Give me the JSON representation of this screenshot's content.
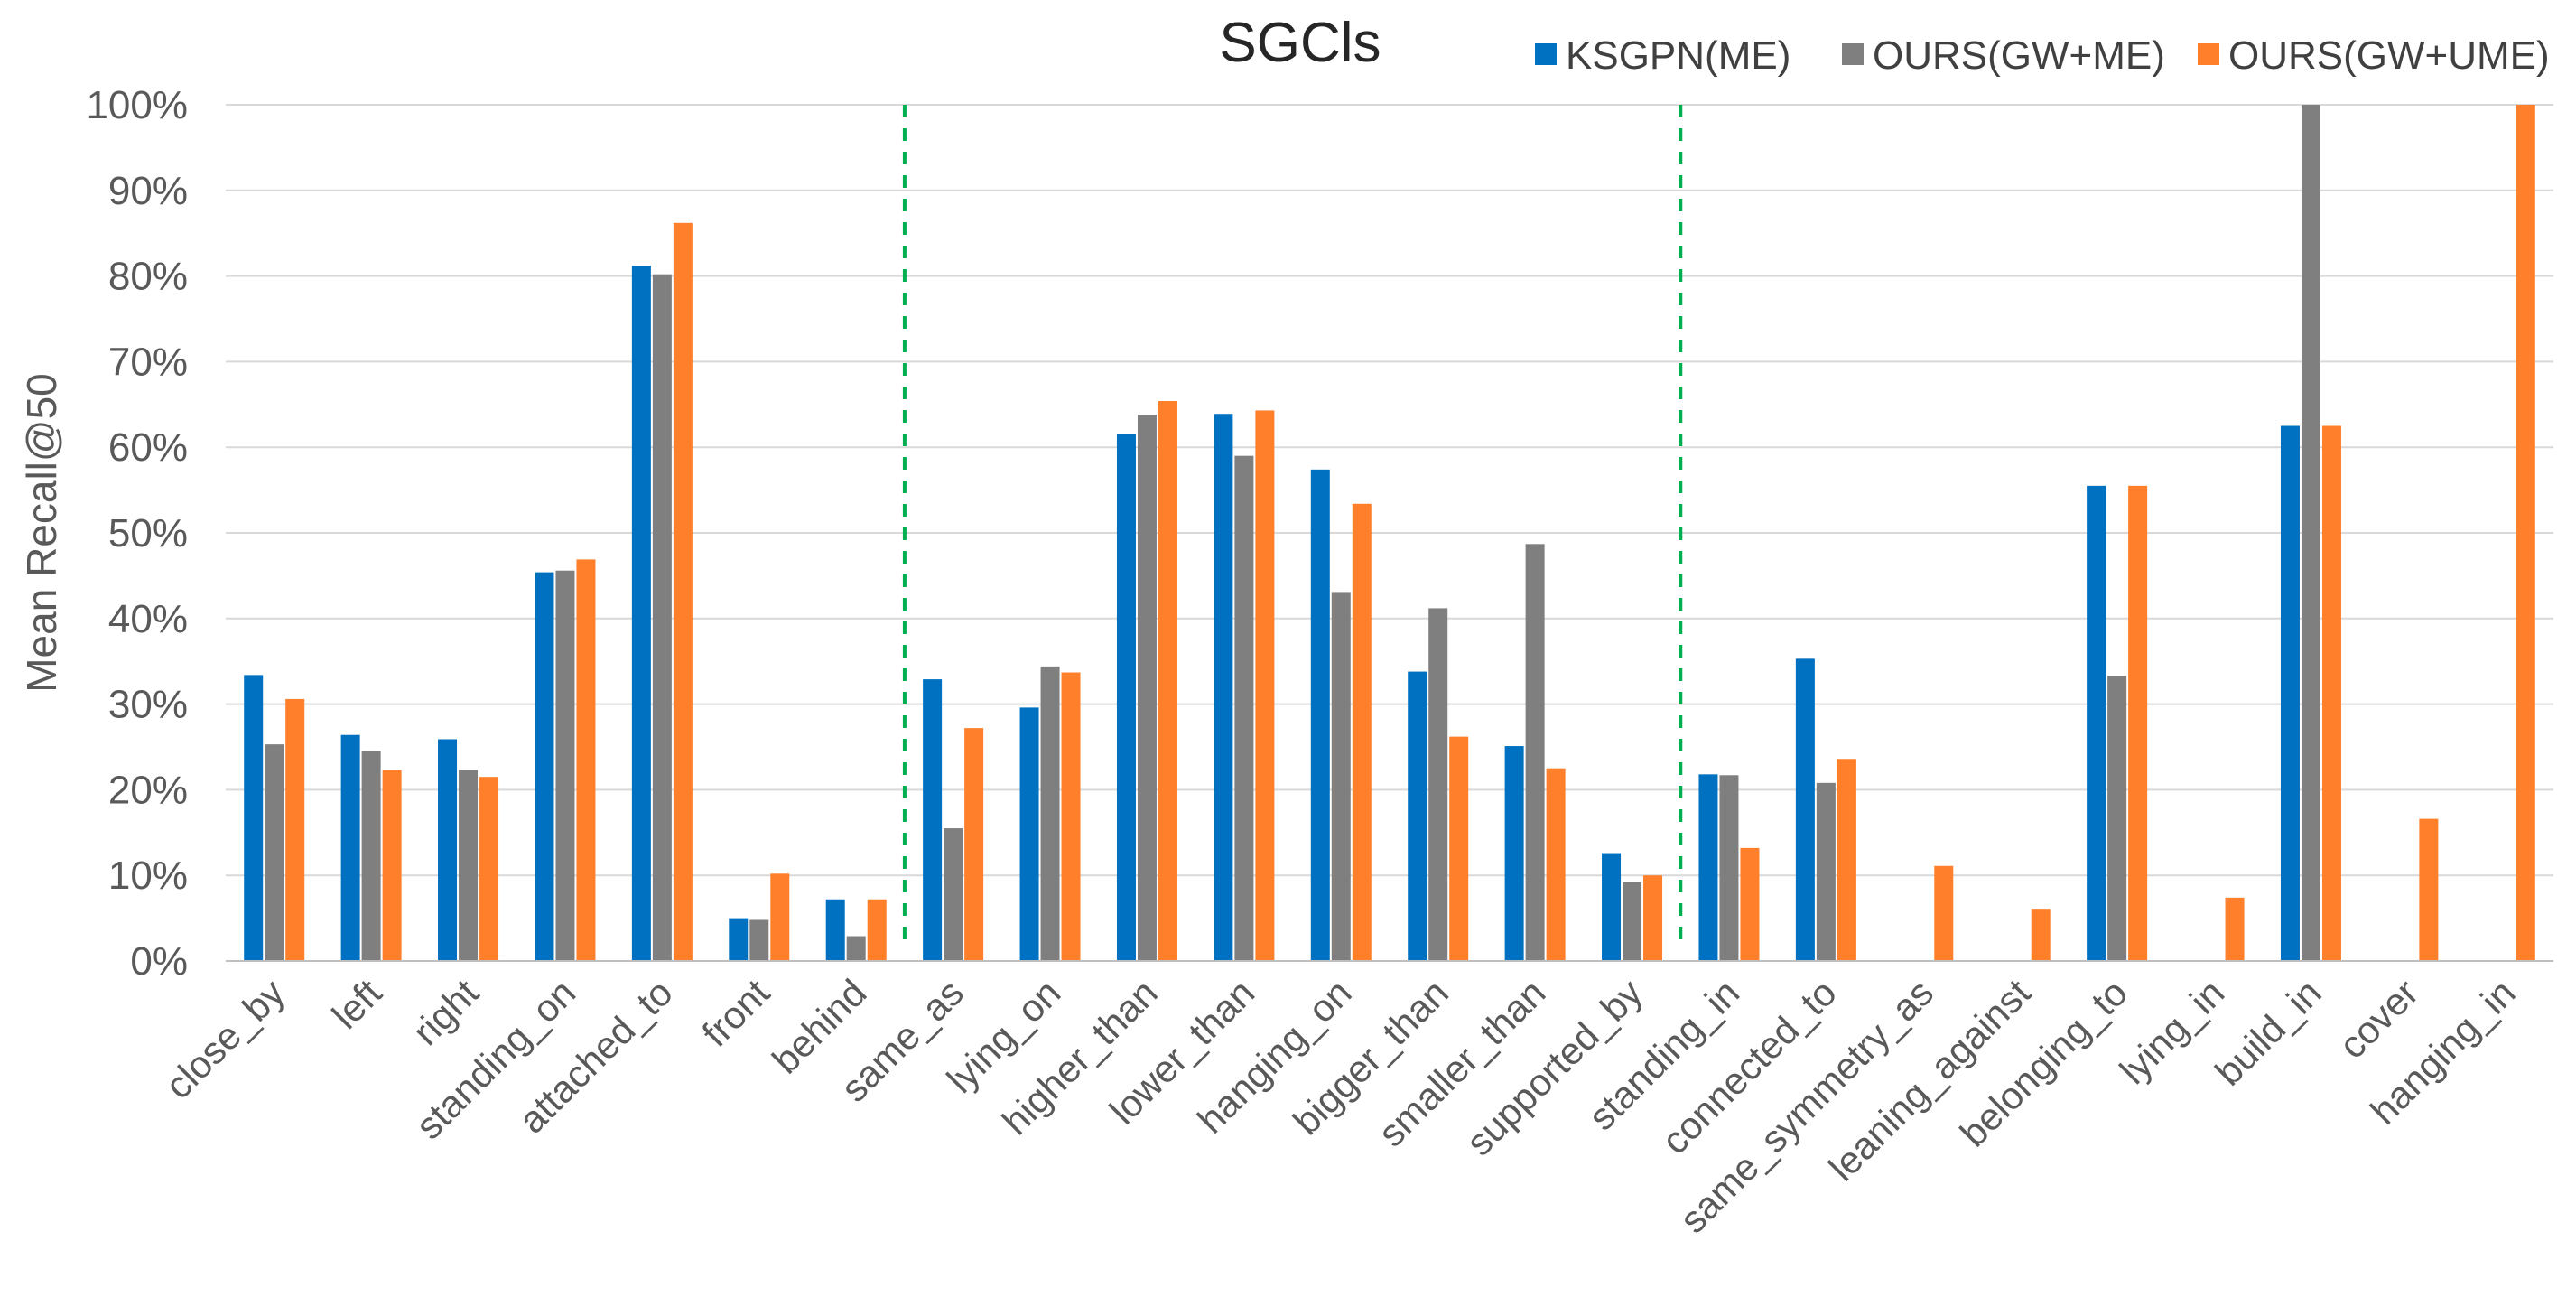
{
  "chart_data": {
    "type": "bar",
    "title": "SGCls",
    "xlabel": "",
    "ylabel": "Mean Recall@50",
    "ylim": [
      0,
      100
    ],
    "y_ticks": [
      "0%",
      "10%",
      "20%",
      "30%",
      "40%",
      "50%",
      "60%",
      "70%",
      "80%",
      "90%",
      "100%"
    ],
    "grid": true,
    "legend_position": "top-right",
    "categories": [
      "close_by",
      "left",
      "right",
      "standing_on",
      "attached_to",
      "front",
      "behind",
      "same_as",
      "lying_on",
      "higher_than",
      "lower_than",
      "hanging_on",
      "bigger_than",
      "smaller_than",
      "supported_by",
      "standing_in",
      "connected_to",
      "same_symmetry_as",
      "leaning_against",
      "belonging_to",
      "lying_in",
      "build_in",
      "cover",
      "hanging_in"
    ],
    "series": [
      {
        "name": "KSGPN(ME)",
        "color": "#0070c0",
        "values": [
          33.4,
          26.4,
          25.9,
          45.4,
          81.2,
          5.0,
          7.2,
          32.9,
          29.6,
          61.6,
          63.9,
          57.4,
          33.8,
          25.1,
          12.6,
          21.8,
          35.3,
          0,
          0,
          55.5,
          0,
          62.5,
          0,
          0
        ]
      },
      {
        "name": "OURS(GW+ME)",
        "color": "#7f7f7f",
        "values": [
          25.3,
          24.5,
          22.3,
          45.6,
          80.2,
          4.8,
          2.9,
          15.5,
          34.4,
          63.8,
          59.0,
          43.1,
          41.2,
          48.7,
          9.2,
          21.7,
          20.8,
          0,
          0,
          33.3,
          0,
          100.0,
          0,
          0
        ]
      },
      {
        "name": "OURS(GW+UME)",
        "color": "#ff7f2a",
        "values": [
          30.6,
          22.3,
          21.5,
          46.9,
          86.2,
          10.2,
          7.2,
          27.2,
          33.7,
          65.4,
          64.3,
          53.4,
          26.2,
          22.5,
          10.0,
          13.2,
          23.6,
          11.1,
          6.1,
          55.5,
          7.4,
          62.5,
          16.6,
          100.0
        ]
      }
    ],
    "group_separators_after": [
      "behind",
      "supported_by"
    ]
  }
}
